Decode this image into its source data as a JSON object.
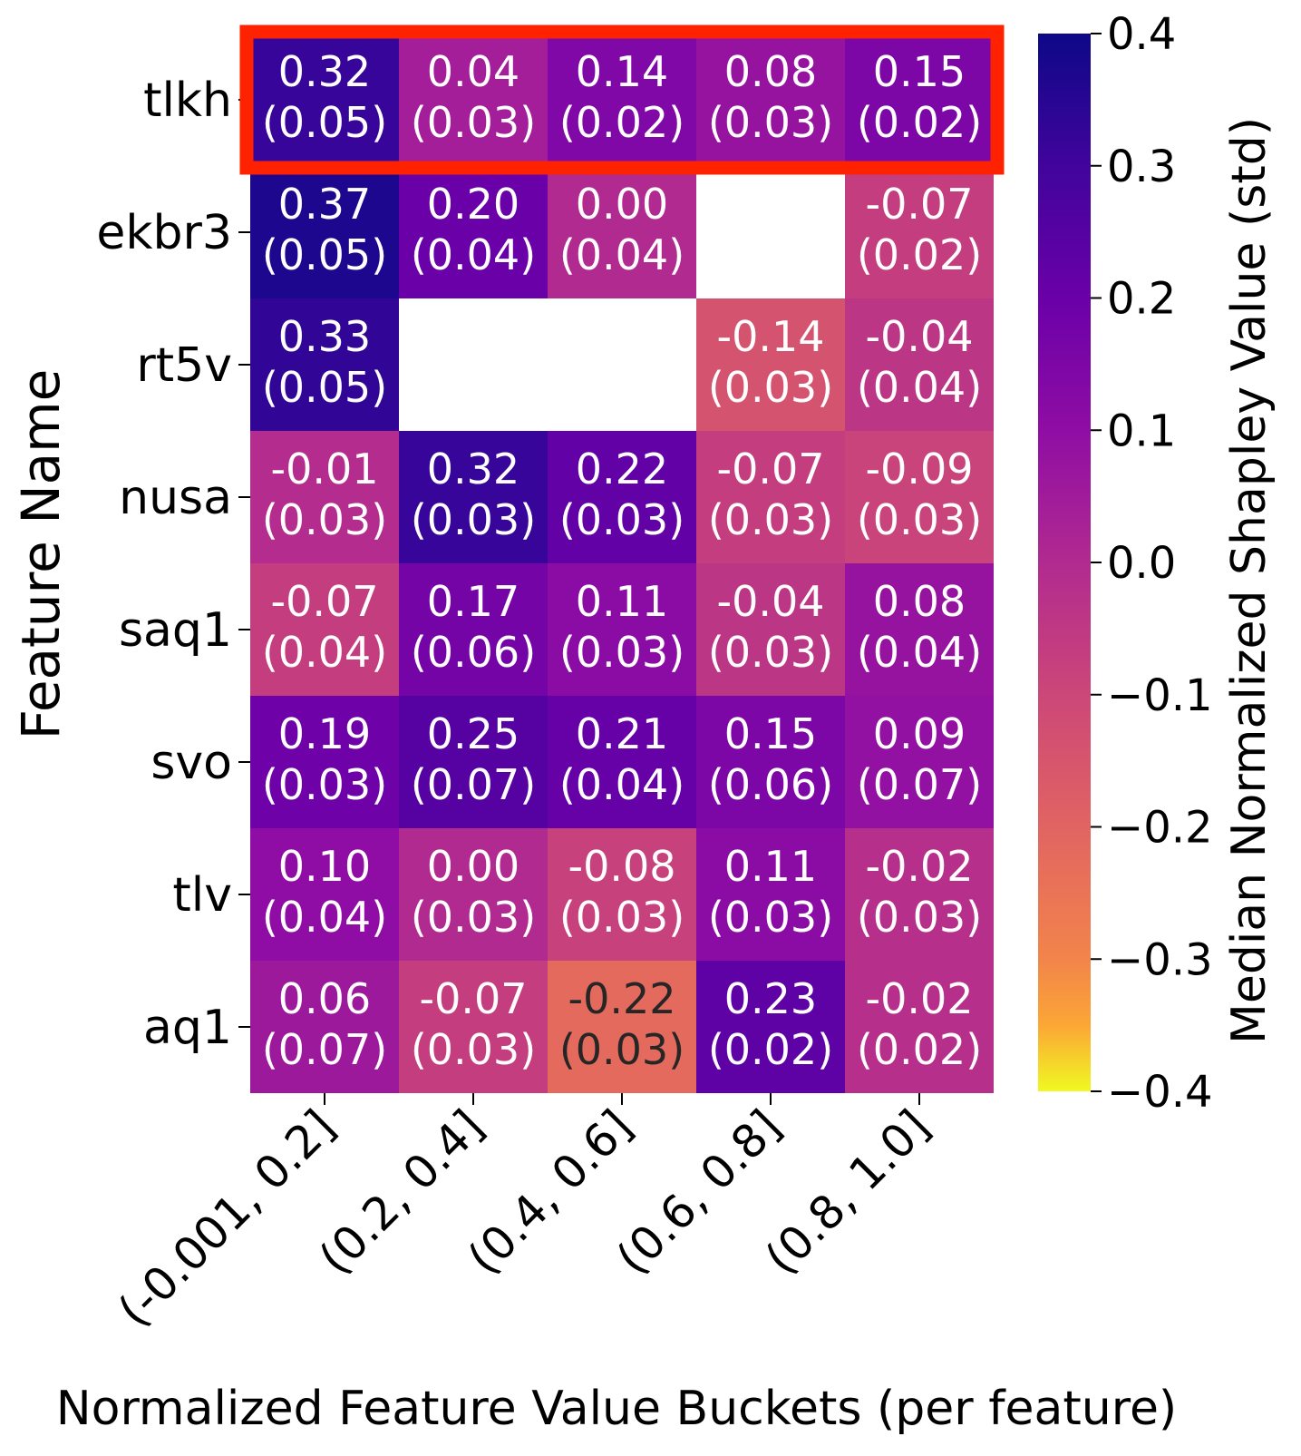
{
  "chart_data": {
    "type": "heatmap",
    "title": "",
    "xlabel": "Normalized Feature Value Buckets (per feature)",
    "ylabel": "Feature Name",
    "x_categories": [
      "(-0.001, 0.2]",
      "(0.2, 0.4]",
      "(0.4, 0.6]",
      "(0.6, 0.8]",
      "(0.8, 1.0]"
    ],
    "y_categories": [
      "tlkh",
      "ekbr3",
      "rt5v",
      "nusa",
      "saq1",
      "svo",
      "tlv",
      "aq1"
    ],
    "values": [
      [
        0.32,
        0.04,
        0.14,
        0.08,
        0.15
      ],
      [
        0.37,
        0.2,
        0.0,
        null,
        -0.07
      ],
      [
        0.33,
        null,
        null,
        -0.14,
        -0.04
      ],
      [
        -0.01,
        0.32,
        0.22,
        -0.07,
        -0.09
      ],
      [
        -0.07,
        0.17,
        0.11,
        -0.04,
        0.08
      ],
      [
        0.19,
        0.25,
        0.21,
        0.15,
        0.09
      ],
      [
        0.1,
        0.0,
        -0.08,
        0.11,
        -0.02
      ],
      [
        0.06,
        -0.07,
        -0.22,
        0.23,
        -0.02
      ]
    ],
    "value_labels": [
      [
        "0.32",
        "0.04",
        "0.14",
        "0.08",
        "0.15"
      ],
      [
        "0.37",
        "0.20",
        "0.00",
        null,
        "-0.07"
      ],
      [
        "0.33",
        null,
        null,
        "-0.14",
        "-0.04"
      ],
      [
        "-0.01",
        "0.32",
        "0.22",
        "-0.07",
        "-0.09"
      ],
      [
        "-0.07",
        "0.17",
        "0.11",
        "-0.04",
        "0.08"
      ],
      [
        "0.19",
        "0.25",
        "0.21",
        "0.15",
        "0.09"
      ],
      [
        "0.10",
        "0.00",
        "-0.08",
        "0.11",
        "-0.02"
      ],
      [
        "0.06",
        "-0.07",
        "-0.22",
        "0.23",
        "-0.02"
      ]
    ],
    "std_labels": [
      [
        "(0.05)",
        "(0.03)",
        "(0.02)",
        "(0.03)",
        "(0.02)"
      ],
      [
        "(0.05)",
        "(0.04)",
        "(0.04)",
        null,
        "(0.02)"
      ],
      [
        "(0.05)",
        null,
        null,
        "(0.03)",
        "(0.04)"
      ],
      [
        "(0.03)",
        "(0.03)",
        "(0.03)",
        "(0.03)",
        "(0.03)"
      ],
      [
        "(0.04)",
        "(0.06)",
        "(0.03)",
        "(0.03)",
        "(0.04)"
      ],
      [
        "(0.03)",
        "(0.07)",
        "(0.04)",
        "(0.06)",
        "(0.07)"
      ],
      [
        "(0.04)",
        "(0.03)",
        "(0.03)",
        "(0.03)",
        "(0.03)"
      ],
      [
        "(0.07)",
        "(0.03)",
        "(0.03)",
        "(0.02)",
        "(0.02)"
      ]
    ],
    "colorbar": {
      "label": "Median Normalized Shapley Value (std)",
      "colormap": "plasma_r",
      "range": [
        -0.4,
        0.4
      ],
      "ticks": [
        0.4,
        0.3,
        0.2,
        0.1,
        0.0,
        -0.1,
        -0.2,
        -0.3,
        -0.4
      ],
      "tick_labels": [
        "0.4",
        "0.3",
        "0.2",
        "0.1",
        "0.0",
        "−0.1",
        "−0.2",
        "−0.3",
        "−0.4"
      ]
    },
    "highlight": {
      "row": "tlkh",
      "color": "#ff2200"
    },
    "colors": {
      "text_light": "#ffffff",
      "text_dark": "#262626",
      "missing": "#ffffff",
      "axis": "#000000"
    }
  }
}
